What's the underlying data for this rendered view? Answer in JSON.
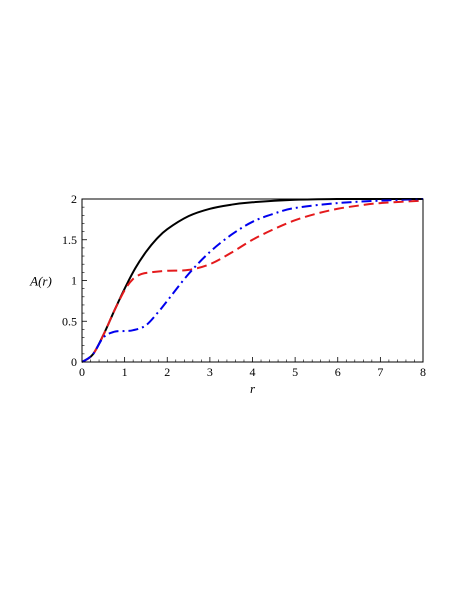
{
  "chart_data": {
    "type": "line",
    "title": "",
    "xlabel": "r",
    "ylabel": "A(r)",
    "xlim": [
      0,
      8
    ],
    "ylim": [
      0,
      2
    ],
    "x_ticks": [
      "0",
      "1",
      "2",
      "3",
      "4",
      "5",
      "6",
      "7",
      "8"
    ],
    "y_ticks": [
      "0",
      "0.5",
      "1",
      "1.5",
      "2"
    ],
    "grid": false,
    "legend": "none",
    "series": [
      {
        "color": "#000000",
        "dash": "solid",
        "points": [
          [
            0,
            0
          ],
          [
            0.25,
            0.09
          ],
          [
            0.5,
            0.33
          ],
          [
            0.75,
            0.62
          ],
          [
            1,
            0.9
          ],
          [
            1.25,
            1.15
          ],
          [
            1.5,
            1.35
          ],
          [
            1.75,
            1.51
          ],
          [
            2,
            1.63
          ],
          [
            2.5,
            1.79
          ],
          [
            3,
            1.88
          ],
          [
            3.5,
            1.93
          ],
          [
            4,
            1.96
          ],
          [
            5,
            1.99
          ],
          [
            6,
            2.0
          ],
          [
            7,
            2.0
          ],
          [
            8,
            2.0
          ]
        ]
      },
      {
        "color": "#e41a1c",
        "dash": "dashed",
        "points": [
          [
            0,
            0
          ],
          [
            0.25,
            0.09
          ],
          [
            0.5,
            0.33
          ],
          [
            0.75,
            0.62
          ],
          [
            1,
            0.88
          ],
          [
            1.2,
            1.02
          ],
          [
            1.4,
            1.08
          ],
          [
            1.6,
            1.1
          ],
          [
            2,
            1.12
          ],
          [
            2.5,
            1.13
          ],
          [
            3,
            1.2
          ],
          [
            3.5,
            1.34
          ],
          [
            4,
            1.5
          ],
          [
            4.5,
            1.63
          ],
          [
            5,
            1.74
          ],
          [
            5.5,
            1.82
          ],
          [
            6,
            1.88
          ],
          [
            6.5,
            1.92
          ],
          [
            7,
            1.95
          ],
          [
            8,
            1.98
          ]
        ]
      },
      {
        "color": "#0000ee",
        "dash": "dash-dot",
        "points": [
          [
            0,
            0
          ],
          [
            0.25,
            0.09
          ],
          [
            0.5,
            0.3
          ],
          [
            0.75,
            0.37
          ],
          [
            1,
            0.38
          ],
          [
            1.2,
            0.39
          ],
          [
            1.5,
            0.45
          ],
          [
            1.8,
            0.62
          ],
          [
            2,
            0.75
          ],
          [
            2.5,
            1.08
          ],
          [
            3,
            1.35
          ],
          [
            3.5,
            1.56
          ],
          [
            4,
            1.72
          ],
          [
            4.5,
            1.82
          ],
          [
            5,
            1.89
          ],
          [
            6,
            1.95
          ],
          [
            7,
            1.98
          ],
          [
            8,
            2.0
          ]
        ]
      }
    ]
  }
}
